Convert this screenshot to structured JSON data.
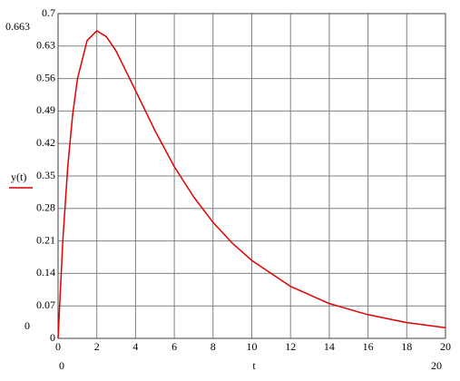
{
  "chart_data": {
    "type": "line",
    "x_label": "t",
    "y_label": "y(t)",
    "x": [
      0,
      0.25,
      0.5,
      0.75,
      1,
      1.5,
      2,
      2.5,
      3,
      4,
      5,
      6,
      7,
      8,
      9,
      10,
      12,
      14,
      16,
      18,
      20
    ],
    "series": [
      {
        "name": "y(t)",
        "color": "#e00000",
        "values": [
          0,
          0.214,
          0.37,
          0.481,
          0.559,
          0.642,
          0.663,
          0.65,
          0.619,
          0.534,
          0.448,
          0.37,
          0.305,
          0.25,
          0.205,
          0.168,
          0.112,
          0.075,
          0.051,
          0.034,
          0.023
        ]
      }
    ],
    "xlim": [
      0,
      20
    ],
    "ylim": [
      0,
      0.7
    ],
    "xticks": [
      0,
      2,
      4,
      6,
      8,
      10,
      12,
      14,
      16,
      18,
      20
    ],
    "yticks": [
      0,
      0.07,
      0.14,
      0.21,
      0.28,
      0.35,
      0.42,
      0.49,
      0.56,
      0.63,
      0.7
    ],
    "y_range_labels": [
      0.663,
      0
    ],
    "x_range_labels": [
      0,
      20
    ],
    "grid": true
  }
}
